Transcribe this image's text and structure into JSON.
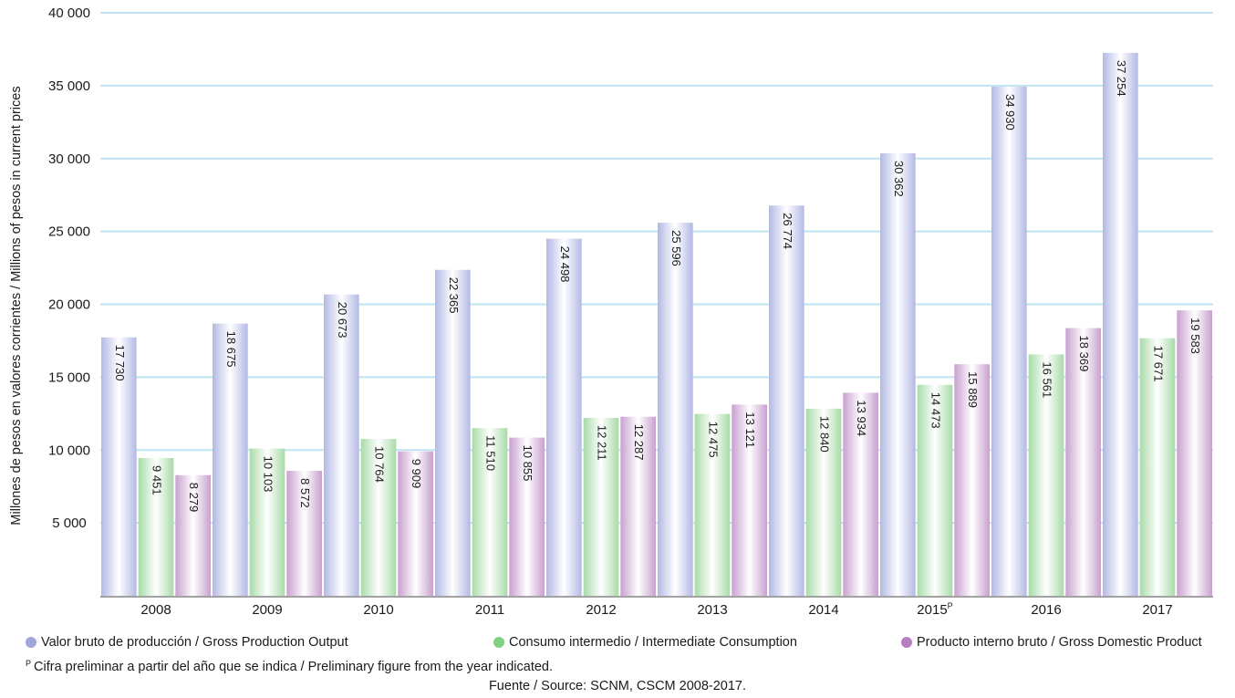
{
  "chart_data": {
    "type": "bar",
    "title": "",
    "xlabel": "",
    "ylabel": "Millones de pesos en valores corrientes / Millions of pesos in current prices",
    "ylim": [
      0,
      40000
    ],
    "yticks": [
      5000,
      10000,
      15000,
      20000,
      25000,
      30000,
      35000,
      40000
    ],
    "ytick_labels": [
      "5 000",
      "10 000",
      "15 000",
      "20 000",
      "25 000",
      "30 000",
      "35 000",
      "40 000"
    ],
    "grid": true,
    "categories": [
      "2008",
      "2009",
      "2010",
      "2011",
      "2012",
      "2013",
      "2014",
      "2015",
      "2016",
      "2017"
    ],
    "category_superscripts": [
      "",
      "",
      "",
      "",
      "",
      "",
      "",
      "P",
      "",
      ""
    ],
    "series": [
      {
        "name": "Valor bruto de producción / Gross Production Output",
        "color": "#b3b9e4",
        "values": [
          17730,
          18675,
          20673,
          22365,
          24498,
          25596,
          26774,
          30362,
          34930,
          37254
        ],
        "labels": [
          "17 730",
          "18 675",
          "20 673",
          "22 365",
          "24 498",
          "25 596",
          "26 774",
          "30 362",
          "34 930",
          "37 254"
        ]
      },
      {
        "name": "Consumo intermedio / Intermediate Consumption",
        "color": "#a8dba8",
        "values": [
          9451,
          10103,
          10764,
          11510,
          12211,
          12475,
          12840,
          14473,
          16561,
          17671
        ],
        "labels": [
          "9 451",
          "10 103",
          "10 764",
          "11 510",
          "12 211",
          "12 475",
          "12 840",
          "14 473",
          "16 561",
          "17 671"
        ]
      },
      {
        "name": "Producto interno bruto / Gross Domestic Product",
        "color": "#c8a0cf",
        "values": [
          8279,
          8572,
          9909,
          10855,
          12287,
          13121,
          13934,
          15889,
          18369,
          19583
        ],
        "labels": [
          "8 279",
          "8 572",
          "9 909",
          "10 855",
          "12 287",
          "13 121",
          "13 934",
          "15 889",
          "18 369",
          "19 583"
        ]
      }
    ],
    "legend_position": "bottom"
  },
  "legend": {
    "items": [
      {
        "label": "Valor bruto de producción / Gross Production Output",
        "color": "#9fa6dc"
      },
      {
        "label": "Consumo intermedio / Intermediate Consumption",
        "color": "#7fd27f"
      },
      {
        "label": "Producto interno bruto / Gross Domestic Product",
        "color": "#b57fc0"
      }
    ]
  },
  "footnote": {
    "marker": "P",
    "text": "Cifra preliminar a partir del año que se indica / Preliminary figure from the year indicated."
  },
  "source": "Fuente / Source: SCNM, CSCM 2008-2017."
}
